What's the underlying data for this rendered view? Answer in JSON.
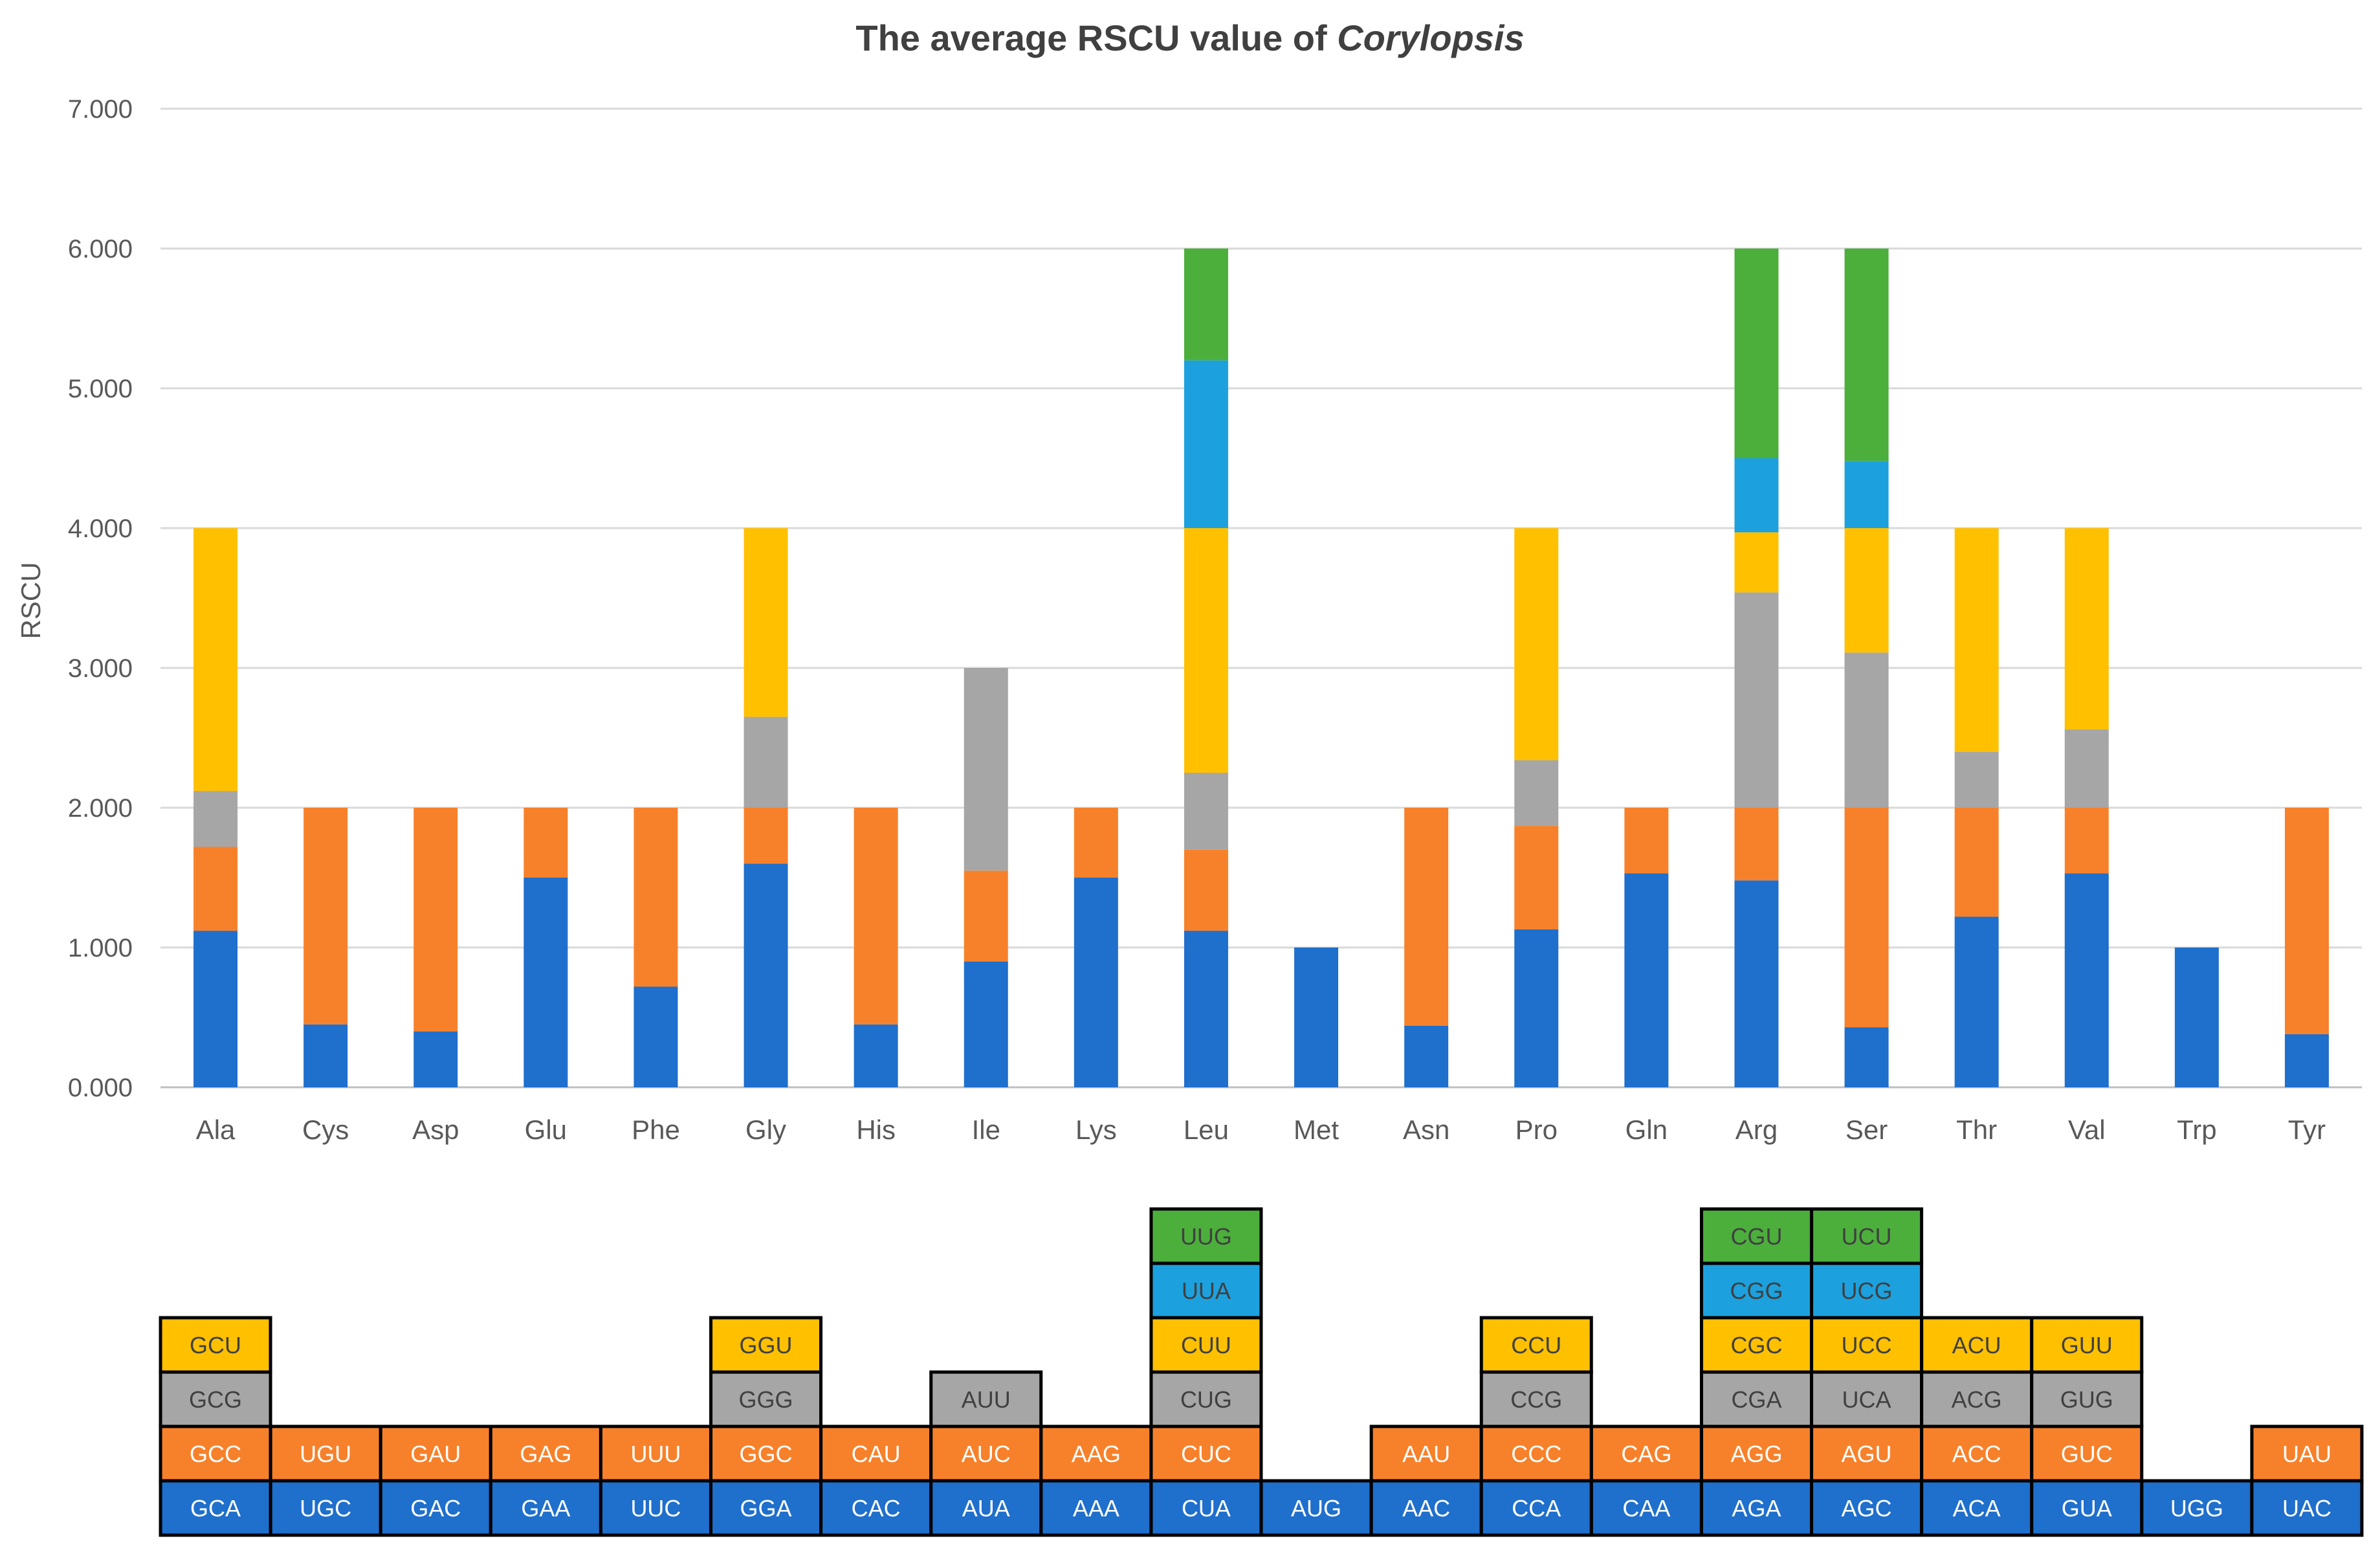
{
  "chart_data": {
    "type": "bar",
    "stacked": true,
    "title_prefix": "The average RSCU value of ",
    "title_italic": "Corylopsis",
    "ylabel": "RSCU",
    "xlabel": "",
    "ylim": [
      0,
      7
    ],
    "yticks": [
      "0.000",
      "1.000",
      "2.000",
      "3.000",
      "4.000",
      "5.000",
      "6.000",
      "7.000"
    ],
    "grid": true,
    "layer_colors": [
      "#1F6FCC",
      "#F7812A",
      "#A6A6A6",
      "#FFC000",
      "#1CA1DE",
      "#4CAF3C"
    ],
    "legend_text_colors": [
      "#FFFFFF",
      "#FFFFFF",
      "#404040",
      "#404040",
      "#404040",
      "#404040"
    ],
    "categories": [
      "Ala",
      "Cys",
      "Asp",
      "Glu",
      "Phe",
      "Gly",
      "His",
      "Ile",
      "Lys",
      "Leu",
      "Met",
      "Asn",
      "Pro",
      "Gln",
      "Arg",
      "Ser",
      "Thr",
      "Val",
      "Trp",
      "Tyr"
    ],
    "stacks": [
      [
        1.12,
        0.6,
        0.4,
        1.88
      ],
      [
        0.45,
        1.55
      ],
      [
        0.4,
        1.6
      ],
      [
        1.5,
        0.5
      ],
      [
        0.72,
        1.28
      ],
      [
        1.6,
        0.4,
        0.65,
        1.35
      ],
      [
        0.45,
        1.55
      ],
      [
        0.9,
        0.65,
        1.45
      ],
      [
        1.5,
        0.5
      ],
      [
        1.12,
        0.58,
        0.55,
        1.75,
        1.2,
        0.8
      ],
      [
        1.0
      ],
      [
        0.44,
        1.56
      ],
      [
        1.13,
        0.74,
        0.47,
        1.66
      ],
      [
        1.53,
        0.47
      ],
      [
        1.48,
        0.52,
        1.54,
        0.43,
        0.53,
        1.5
      ],
      [
        0.43,
        1.57,
        1.11,
        0.89,
        0.48,
        1.52
      ],
      [
        1.22,
        0.78,
        0.4,
        1.6
      ],
      [
        1.53,
        0.47,
        0.56,
        1.44
      ],
      [
        1.0
      ],
      [
        0.38,
        1.62
      ]
    ],
    "codons": [
      [
        "GCA",
        "GCC",
        "GCG",
        "GCU"
      ],
      [
        "UGC",
        "UGU"
      ],
      [
        "GAC",
        "GAU"
      ],
      [
        "GAA",
        "GAG"
      ],
      [
        "UUC",
        "UUU"
      ],
      [
        "GGA",
        "GGC",
        "GGG",
        "GGU"
      ],
      [
        "CAC",
        "CAU"
      ],
      [
        "AUA",
        "AUC",
        "AUU"
      ],
      [
        "AAA",
        "AAG"
      ],
      [
        "CUA",
        "CUC",
        "CUG",
        "CUU",
        "UUA",
        "UUG"
      ],
      [
        "AUG"
      ],
      [
        "AAC",
        "AAU"
      ],
      [
        "CCA",
        "CCC",
        "CCG",
        "CCU"
      ],
      [
        "CAA",
        "CAG"
      ],
      [
        "AGA",
        "AGG",
        "CGA",
        "CGC",
        "CGG",
        "CGU"
      ],
      [
        "AGC",
        "AGU",
        "UCA",
        "UCC",
        "UCG",
        "UCU"
      ],
      [
        "ACA",
        "ACC",
        "ACG",
        "ACU"
      ],
      [
        "GUA",
        "GUC",
        "GUG",
        "GUU"
      ],
      [
        "UGG"
      ],
      [
        "UAC",
        "UAU"
      ]
    ]
  }
}
